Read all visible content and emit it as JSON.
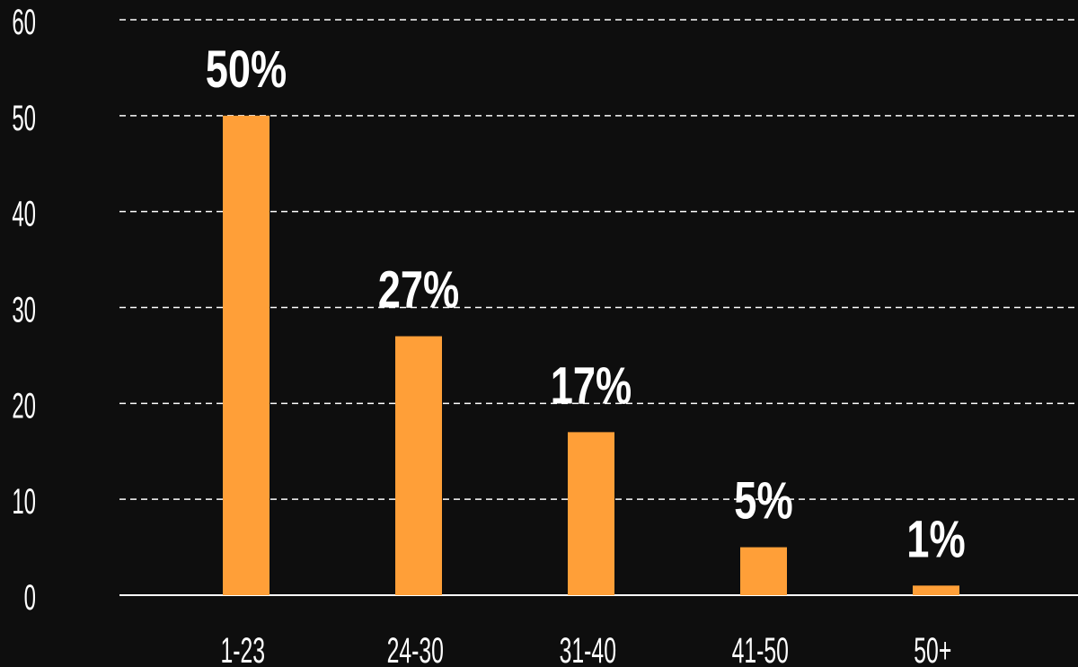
{
  "chart_data": {
    "type": "bar",
    "title": "",
    "xlabel": "",
    "ylabel": "",
    "categories": [
      "1-23",
      "24-30",
      "31-40",
      "41-50",
      "50+"
    ],
    "values": [
      50,
      27,
      17,
      5,
      1
    ],
    "data_labels": [
      "50%",
      "27%",
      "17%",
      "5%",
      "1%"
    ],
    "ylim": [
      0,
      60
    ],
    "yticks": [
      "0",
      "10",
      "20",
      "30",
      "40",
      "50",
      "60"
    ],
    "grid": true,
    "legend": "none",
    "colors": {
      "bar": "#FF9F38",
      "background": "#0E0E0E",
      "text": "#FFFFFF",
      "grid": "#FFFFFF"
    }
  }
}
